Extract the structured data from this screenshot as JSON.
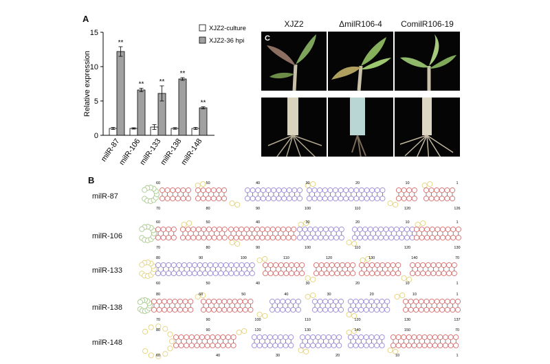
{
  "panels": {
    "a": "A",
    "b": "B",
    "c": "C"
  },
  "chart_data": {
    "type": "bar",
    "categories": [
      "milR-87",
      "milR-106",
      "milR-133",
      "milR-138",
      "milR-148"
    ],
    "series": [
      {
        "name": "XJZ2-culture",
        "values": [
          1.0,
          1.0,
          1.2,
          1.0,
          1.0
        ],
        "errors": [
          0.15,
          0.1,
          0.35,
          0.12,
          0.15
        ],
        "color": "#ffffff"
      },
      {
        "name": "XJZ2-36 hpi",
        "values": [
          12.2,
          6.6,
          6.1,
          8.2,
          4.0
        ],
        "errors": [
          0.7,
          0.25,
          1.1,
          0.2,
          0.15
        ],
        "color": "#a0a0a0"
      }
    ],
    "significance": [
      "**",
      "**",
      "**",
      "**",
      "**"
    ],
    "ylabel": "Relative expression",
    "ylim": [
      0,
      15
    ],
    "yticks": [
      "0",
      "5",
      "10",
      "15"
    ],
    "legend_position": "top-right",
    "grid": false
  },
  "photos": {
    "columns": [
      "XJZ2",
      "ΔmilR106-4",
      "ComilR106-19"
    ],
    "rows": [
      "leaves",
      "roots"
    ],
    "colors": {
      "leaf": "#7aa04a",
      "stem": "#d8d0b8",
      "root": "#b8ad95",
      "background": "#050505"
    }
  },
  "rna": {
    "rows": [
      {
        "label": "milR-87",
        "numbers": [
          "60",
          "50",
          "40",
          "30",
          "20",
          "10",
          "1",
          "70",
          "80",
          "90",
          "100",
          "110",
          "120",
          "126"
        ]
      },
      {
        "label": "milR-106",
        "numbers": [
          "60",
          "50",
          "40",
          "30",
          "20",
          "10",
          "1",
          "70",
          "80",
          "90",
          "100",
          "110",
          "120",
          "130"
        ]
      },
      {
        "label": "milR-133",
        "numbers": [
          "80",
          "90",
          "100",
          "110",
          "120",
          "130",
          "140",
          "70",
          "60",
          "50",
          "40",
          "30",
          "20",
          "10",
          "1"
        ]
      },
      {
        "label": "milR-138",
        "numbers": [
          "80",
          "60",
          "50",
          "40",
          "30",
          "20",
          "10",
          "1",
          "70",
          "90",
          "100",
          "110",
          "120",
          "130",
          "137"
        ]
      },
      {
        "label": "milR-148",
        "numbers": [
          "80",
          "90",
          "120",
          "130",
          "140",
          "150",
          "70",
          "60",
          "40",
          "30",
          "20",
          "10",
          "1"
        ]
      }
    ],
    "colors": {
      "paired_red": "#d76a6a",
      "paired_blue": "#9a88d8",
      "loop_green": "#a7c98a",
      "loop_yellow": "#e3d17a"
    }
  }
}
